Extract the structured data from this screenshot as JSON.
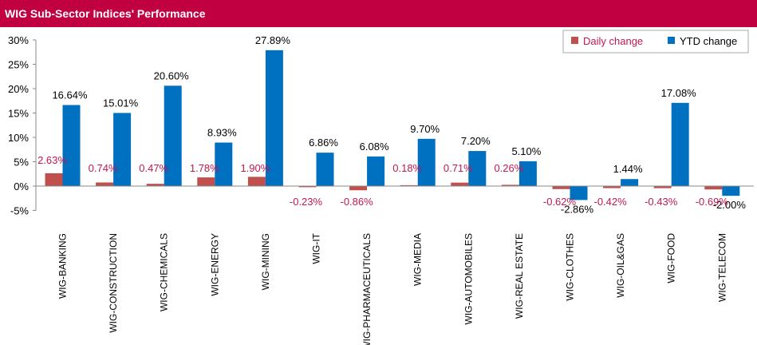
{
  "title": "WIG Sub-Sector Indices' Performance",
  "colors": {
    "daily": "#c0504d",
    "ytd": "#0070c0",
    "title_bg": "#c00040",
    "daily_label": "#c0184f"
  },
  "chart_data": {
    "type": "bar",
    "title": "WIG Sub-Sector Indices' Performance",
    "categories": [
      "WIG-BANKING",
      "WIG-CONSTRUCTION",
      "WIG-CHEMICALS",
      "WIG-ENERGY",
      "WIG-MINING",
      "WIG-IT",
      "WIG-PHARMACEUTICALS",
      "WIG-MEDIA",
      "WIG-AUTOMOBILES",
      "WIG-REAL ESTATE",
      "WIG-CLOTHES",
      "WIG-OIL&GAS",
      "WIG-FOOD",
      "WIG-TELECOM"
    ],
    "series": [
      {
        "name": "Daily change",
        "values": [
          2.63,
          0.74,
          0.47,
          1.78,
          1.9,
          -0.23,
          -0.86,
          0.18,
          0.71,
          0.26,
          -0.62,
          -0.42,
          -0.43,
          -0.69
        ],
        "labels": [
          "2.63%",
          "0.74%",
          "0.47%",
          "1.78%",
          "1.90%",
          "-0.23%",
          "-0.86%",
          "0.18%",
          "0.71%",
          "0.26%",
          "-0.62%",
          "-0.42%",
          "-0.43%",
          "-0.69%"
        ]
      },
      {
        "name": "YTD change",
        "values": [
          16.64,
          15.01,
          20.6,
          8.93,
          27.89,
          6.86,
          6.08,
          9.7,
          7.2,
          5.1,
          -2.86,
          1.44,
          17.08,
          -2.0
        ],
        "labels": [
          "16.64%",
          "15.01%",
          "20.60%",
          "8.93%",
          "27.89%",
          "6.86%",
          "6.08%",
          "9.70%",
          "7.20%",
          "5.10%",
          "-2.86%",
          "1.44%",
          "17.08%",
          "-2.00%"
        ]
      }
    ],
    "ylim": [
      -5,
      30
    ],
    "yticks": [
      -5,
      0,
      5,
      10,
      15,
      20,
      25,
      30
    ],
    "ytick_labels": [
      "-5%",
      "0%",
      "5%",
      "10%",
      "15%",
      "20%",
      "25%",
      "30%"
    ],
    "legend_position": "top-right",
    "grid": false
  }
}
